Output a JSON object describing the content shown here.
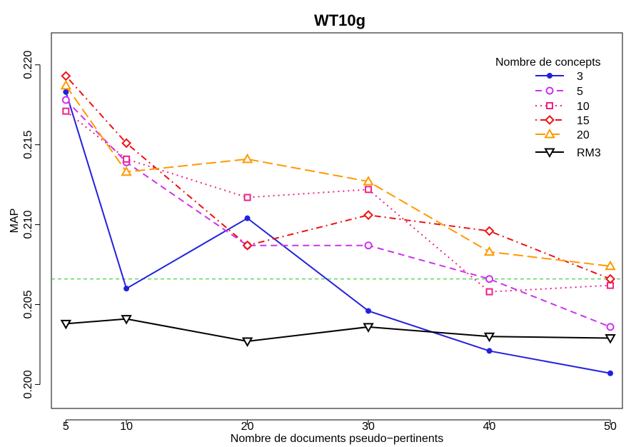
{
  "chart_data": {
    "type": "line",
    "title": "WT10g",
    "xlabel": "Nombre de documents pseudo−pertinents",
    "ylabel": "MAP",
    "x": [
      5,
      10,
      20,
      30,
      40,
      50
    ],
    "xticks": [
      "5",
      "10",
      "20",
      "30",
      "40",
      "50"
    ],
    "yticks": [
      "0.200",
      "0.205",
      "0.210",
      "0.215",
      "0.220"
    ],
    "ylim": [
      0.1985,
      0.222
    ],
    "legend_title": "Nombre de concepts",
    "legend_position": "top-right",
    "grid": false,
    "series": [
      {
        "name": "3",
        "color": "#2222dd",
        "marker": "filled-circle",
        "line": "solid",
        "values": [
          0.2183,
          0.206,
          0.2104,
          0.2046,
          0.2021,
          0.2007
        ]
      },
      {
        "name": "5",
        "color": "#cc33ee",
        "marker": "circle",
        "line": "dashed",
        "values": [
          0.2178,
          0.2139,
          0.2087,
          0.2087,
          0.2066,
          0.2036
        ]
      },
      {
        "name": "10",
        "color": "#ee2288",
        "marker": "square",
        "line": "dotted",
        "values": [
          0.2171,
          0.2141,
          0.2117,
          0.2122,
          0.2058,
          0.2062
        ]
      },
      {
        "name": "15",
        "color": "#ee1111",
        "marker": "diamond",
        "line": "dashdot",
        "values": [
          0.2193,
          0.2151,
          0.2087,
          0.2106,
          0.2096,
          0.2066
        ]
      },
      {
        "name": "20",
        "color": "#ff9900",
        "marker": "triangle-up",
        "line": "longdash",
        "values": [
          0.2187,
          0.2133,
          0.2141,
          0.2127,
          0.2083,
          0.2074
        ]
      },
      {
        "name": "RM3",
        "color": "#000000",
        "marker": "triangle-down",
        "line": "solid",
        "values": [
          0.2038,
          0.2041,
          0.2027,
          0.2036,
          0.203,
          0.2029
        ]
      }
    ],
    "reference_line": {
      "y": 0.2066,
      "color": "#33cc33",
      "style": "dashed"
    }
  }
}
